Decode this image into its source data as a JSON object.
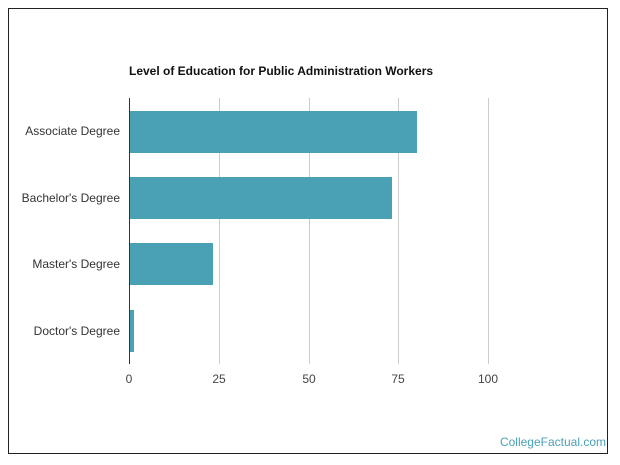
{
  "chart_data": {
    "type": "bar",
    "orientation": "horizontal",
    "title": "Level of Education for Public Administration Workers",
    "xlabel": "",
    "ylabel": "",
    "categories": [
      "Associate Degree",
      "Bachelor's Degree",
      "Master's Degree",
      "Doctor's Degree"
    ],
    "values": [
      80,
      73,
      23,
      1
    ],
    "xlim": [
      0,
      100
    ],
    "xticks": [
      0,
      25,
      50,
      75,
      100
    ],
    "grid": true,
    "legend": null,
    "bar_color": "#4aa0b5"
  },
  "labels": {
    "title": "Level of Education for Public Administration Workers",
    "ticks": [
      "0",
      "25",
      "50",
      "75",
      "100"
    ],
    "categories": [
      "Associate Degree",
      "Bachelor's Degree",
      "Master's Degree",
      "Doctor's Degree"
    ]
  },
  "watermark": {
    "text": "CollegeFactual.com",
    "color": "#4aa0b5"
  }
}
